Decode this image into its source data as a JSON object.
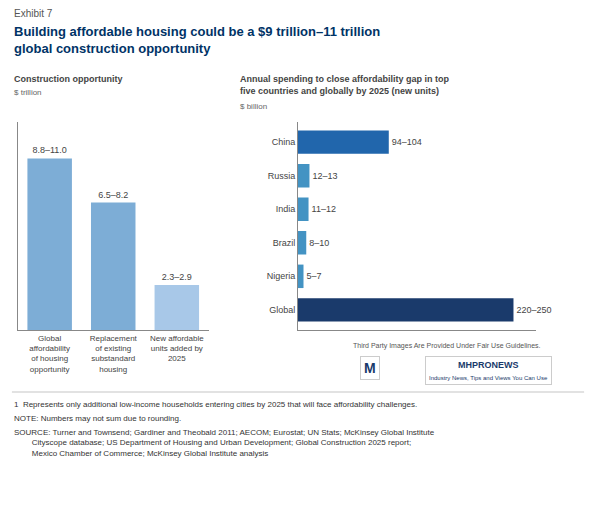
{
  "exhibit_label": "Exhibit 7",
  "title": "Building affordable housing could be a $9 trillion–11 trillion\nglobal construction opportunity",
  "footnotes": [
    "1  Represents only additional low-income households entering cities by 2025 that will face affordability challenges.",
    "NOTE: Numbers may not sum due to rounding.",
    "SOURCE: Turner and Townsend; Gardiner and Theobald 2011; AECOM; Eurostat; UN Stats; McKinsey Global Institute\n        Cityscope database; US Department of Housing and Urban Development; Global Construction 2025 report;\n        Mexico Chamber of Commerce; McKinsey Global Institute analysis"
  ],
  "credits": [
    "Third Party Images Are Provided Under Fair Use Guidelines.",
    "M",
    "MHPRONEWS",
    "Industry News, Tips and Views You Can Use"
  ],
  "chart_data": [
    {
      "type": "bar",
      "title": "Construction opportunity",
      "subtitle": "$ trillion",
      "categories": [
        "Global\naffordability\nof housing\nopportunity",
        "Replacement\nof existing\nsubstandard\nhousing",
        "New affordable\nunits added by\n2025"
      ],
      "values": [
        9.9,
        7.35,
        2.6
      ],
      "value_labels": [
        "8.8–11.0",
        "6.5–8.2",
        "2.3–2.9"
      ],
      "data_labels": true,
      "colors": [
        "#7dadd6",
        "#7dadd6",
        "#a8c8e8"
      ],
      "ylim": [
        0,
        12
      ],
      "tick_labels": "x",
      "grid": false
    },
    {
      "type": "bar",
      "orientation": "horizontal",
      "title": "Annual spending to close affordability gap in top\nfive countries and globally by 2025 (new units)",
      "subtitle": "$ billion",
      "categories": [
        "China",
        "Russia",
        "India",
        "Brazil",
        "Nigeria",
        "Global"
      ],
      "values": [
        99,
        12.5,
        11.5,
        9,
        6,
        235
      ],
      "value_labels": [
        "94–104",
        "12–13",
        "11–12",
        "8–10",
        "5–7",
        "220–250"
      ],
      "data_labels": true,
      "colors": [
        "#2166ac",
        "#4393c3",
        "#4393c3",
        "#4393c3",
        "#4393c3",
        "#1a3a6b"
      ],
      "xlim": [
        0,
        260
      ],
      "tick_labels": "y",
      "grid": false
    }
  ]
}
